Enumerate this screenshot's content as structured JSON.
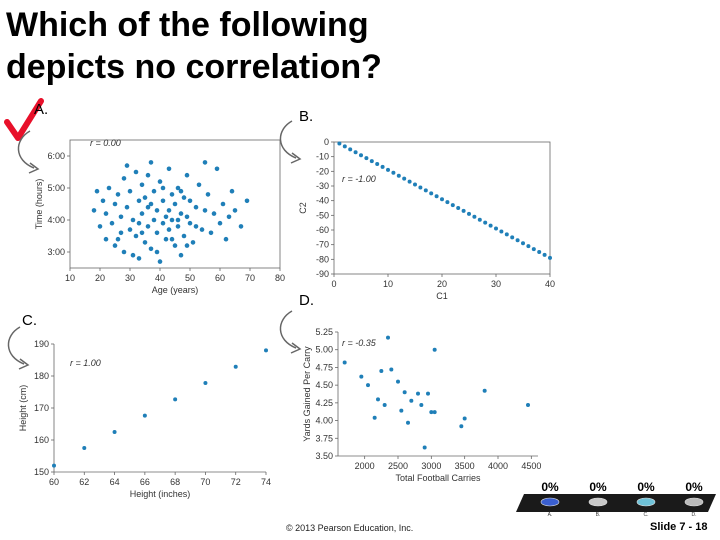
{
  "slide": {
    "title_line1": "Which of the following",
    "title_line2": "depicts no correlation?",
    "option_a": "A.",
    "option_b": "B.",
    "option_c": "C.",
    "option_d": "D.",
    "footer": "© 2013 Pearson Education, Inc.",
    "slide_number": "Slide 7 - 18",
    "checkmark_color": "#e8102a",
    "point_color": "#1f7fb8"
  },
  "poll": {
    "options": [
      {
        "label": "A.",
        "percent": "0%",
        "color": "#3a5fd0"
      },
      {
        "label": "B.",
        "percent": "0%",
        "color": "#c8c8c8"
      },
      {
        "label": "C.",
        "percent": "0%",
        "color": "#6fc2d8"
      },
      {
        "label": "D.",
        "percent": "0%",
        "color": "#bbbbbb"
      }
    ]
  },
  "chart_data": [
    {
      "type": "scatter",
      "id": "A",
      "annotation": "r = 0.00",
      "xlabel": "Age (years)",
      "ylabel": "Time (hours)",
      "xlim": [
        10,
        80
      ],
      "ylim": [
        2.5,
        6.5
      ],
      "xticks": [
        "10",
        "20",
        "30",
        "40",
        "50",
        "60",
        "70",
        "80"
      ],
      "yticks": [
        "3:00",
        "4:00",
        "5:00",
        "6:00"
      ],
      "points": [
        [
          18,
          4.3
        ],
        [
          19,
          4.9
        ],
        [
          20,
          3.8
        ],
        [
          21,
          4.6
        ],
        [
          22,
          3.4
        ],
        [
          22,
          4.2
        ],
        [
          23,
          5.0
        ],
        [
          24,
          3.9
        ],
        [
          25,
          4.5
        ],
        [
          25,
          3.2
        ],
        [
          26,
          4.8
        ],
        [
          27,
          3.6
        ],
        [
          27,
          4.1
        ],
        [
          28,
          5.3
        ],
        [
          28,
          3.0
        ],
        [
          29,
          4.4
        ],
        [
          30,
          3.7
        ],
        [
          30,
          4.9
        ],
        [
          31,
          4.0
        ],
        [
          31,
          2.9
        ],
        [
          32,
          5.5
        ],
        [
          32,
          3.5
        ],
        [
          33,
          4.6
        ],
        [
          33,
          3.9
        ],
        [
          34,
          4.2
        ],
        [
          34,
          5.1
        ],
        [
          35,
          3.3
        ],
        [
          35,
          4.7
        ],
        [
          36,
          3.8
        ],
        [
          36,
          4.4
        ],
        [
          37,
          5.8
        ],
        [
          37,
          3.1
        ],
        [
          38,
          4.0
        ],
        [
          38,
          4.9
        ],
        [
          39,
          3.6
        ],
        [
          39,
          4.3
        ],
        [
          40,
          2.7
        ],
        [
          40,
          5.2
        ],
        [
          41,
          3.9
        ],
        [
          41,
          4.6
        ],
        [
          42,
          3.4
        ],
        [
          42,
          4.1
        ],
        [
          43,
          5.6
        ],
        [
          43,
          3.7
        ],
        [
          44,
          4.8
        ],
        [
          44,
          4.0
        ],
        [
          45,
          3.2
        ],
        [
          45,
          4.5
        ],
        [
          46,
          5.0
        ],
        [
          46,
          3.8
        ],
        [
          47,
          4.2
        ],
        [
          47,
          2.9
        ],
        [
          48,
          4.7
        ],
        [
          48,
          3.5
        ],
        [
          49,
          5.4
        ],
        [
          49,
          4.1
        ],
        [
          50,
          3.9
        ],
        [
          50,
          4.6
        ],
        [
          51,
          3.3
        ],
        [
          52,
          4.4
        ],
        [
          53,
          5.1
        ],
        [
          54,
          3.7
        ],
        [
          55,
          4.3
        ],
        [
          56,
          4.8
        ],
        [
          57,
          3.6
        ],
        [
          58,
          4.2
        ],
        [
          59,
          5.6
        ],
        [
          60,
          3.9
        ],
        [
          61,
          4.5
        ],
        [
          62,
          3.4
        ],
        [
          63,
          4.1
        ],
        [
          64,
          4.9
        ],
        [
          65,
          4.3
        ],
        [
          67,
          3.8
        ],
        [
          69,
          4.6
        ],
        [
          26,
          3.4
        ],
        [
          29,
          5.7
        ],
        [
          33,
          2.8
        ],
        [
          36,
          5.4
        ],
        [
          39,
          3.0
        ],
        [
          43,
          4.3
        ],
        [
          46,
          4.0
        ],
        [
          49,
          3.2
        ],
        [
          52,
          3.8
        ],
        [
          55,
          5.8
        ],
        [
          34,
          3.6
        ],
        [
          37,
          4.5
        ],
        [
          41,
          5.0
        ],
        [
          44,
          3.4
        ],
        [
          47,
          4.9
        ]
      ]
    },
    {
      "type": "scatter",
      "id": "B",
      "annotation": "r = -1.00",
      "xlabel": "C1",
      "ylabel": "C2",
      "xlim": [
        0,
        40
      ],
      "ylim": [
        -90,
        0
      ],
      "xticks": [
        "0",
        "10",
        "20",
        "30",
        "40"
      ],
      "yticks": [
        "0",
        "-10",
        "-20",
        "-30",
        "-40",
        "-50",
        "-60",
        "-70",
        "-80",
        "-90"
      ],
      "points": [
        [
          1,
          -1
        ],
        [
          2,
          -3
        ],
        [
          3,
          -5
        ],
        [
          4,
          -7
        ],
        [
          5,
          -9
        ],
        [
          6,
          -11
        ],
        [
          7,
          -13
        ],
        [
          8,
          -15
        ],
        [
          9,
          -17
        ],
        [
          10,
          -19
        ],
        [
          11,
          -21
        ],
        [
          12,
          -23
        ],
        [
          13,
          -25
        ],
        [
          14,
          -27
        ],
        [
          15,
          -29
        ],
        [
          16,
          -31
        ],
        [
          17,
          -33
        ],
        [
          18,
          -35
        ],
        [
          19,
          -37
        ],
        [
          20,
          -39
        ],
        [
          21,
          -41
        ],
        [
          22,
          -43
        ],
        [
          23,
          -45
        ],
        [
          24,
          -47
        ],
        [
          25,
          -49
        ],
        [
          26,
          -51
        ],
        [
          27,
          -53
        ],
        [
          28,
          -55
        ],
        [
          29,
          -57
        ],
        [
          30,
          -59
        ],
        [
          31,
          -61
        ],
        [
          32,
          -63
        ],
        [
          33,
          -65
        ],
        [
          34,
          -67
        ],
        [
          35,
          -69
        ],
        [
          36,
          -71
        ],
        [
          37,
          -73
        ],
        [
          38,
          -75
        ],
        [
          39,
          -77
        ],
        [
          40,
          -79
        ]
      ]
    },
    {
      "type": "scatter",
      "id": "C",
      "annotation": "r = 1.00",
      "xlabel": "Height (inches)",
      "ylabel": "Height (cm)",
      "xlim": [
        60,
        74
      ],
      "ylim": [
        150,
        190
      ],
      "xticks": [
        "60",
        "62",
        "64",
        "66",
        "68",
        "70",
        "72",
        "74"
      ],
      "yticks": [
        "150",
        "160",
        "170",
        "180",
        "190"
      ],
      "points": [
        [
          60,
          152
        ],
        [
          62,
          157.5
        ],
        [
          64,
          162.5
        ],
        [
          66,
          167.6
        ],
        [
          68,
          172.7
        ],
        [
          70,
          177.8
        ],
        [
          72,
          182.9
        ],
        [
          74,
          188
        ]
      ]
    },
    {
      "type": "scatter",
      "id": "D",
      "annotation": "r = -0.35",
      "xlabel": "Total Football Carries",
      "ylabel": "Yards Gained Per Carry",
      "xlim": [
        1600,
        4600
      ],
      "ylim": [
        3.5,
        5.25
      ],
      "xticks": [
        "2000",
        "2500",
        "3000",
        "3500",
        "4000",
        "4500"
      ],
      "yticks": [
        "3.50",
        "3.75",
        "4.00",
        "4.25",
        "4.50",
        "4.75",
        "5.00",
        "5.25"
      ],
      "points": [
        [
          1700,
          4.82
        ],
        [
          1950,
          4.62
        ],
        [
          2050,
          4.5
        ],
        [
          2150,
          4.04
        ],
        [
          2200,
          4.3
        ],
        [
          2250,
          4.7
        ],
        [
          2300,
          4.22
        ],
        [
          2350,
          5.17
        ],
        [
          2400,
          4.72
        ],
        [
          2500,
          4.55
        ],
        [
          2550,
          4.14
        ],
        [
          2600,
          4.4
        ],
        [
          2650,
          3.97
        ],
        [
          2700,
          4.28
        ],
        [
          2800,
          4.38
        ],
        [
          2850,
          4.22
        ],
        [
          2900,
          3.62
        ],
        [
          2950,
          4.38
        ],
        [
          3000,
          4.12
        ],
        [
          3050,
          4.12
        ],
        [
          3050,
          5.0
        ],
        [
          3450,
          3.92
        ],
        [
          3500,
          4.03
        ],
        [
          3800,
          4.42
        ],
        [
          4450,
          4.22
        ]
      ]
    }
  ]
}
